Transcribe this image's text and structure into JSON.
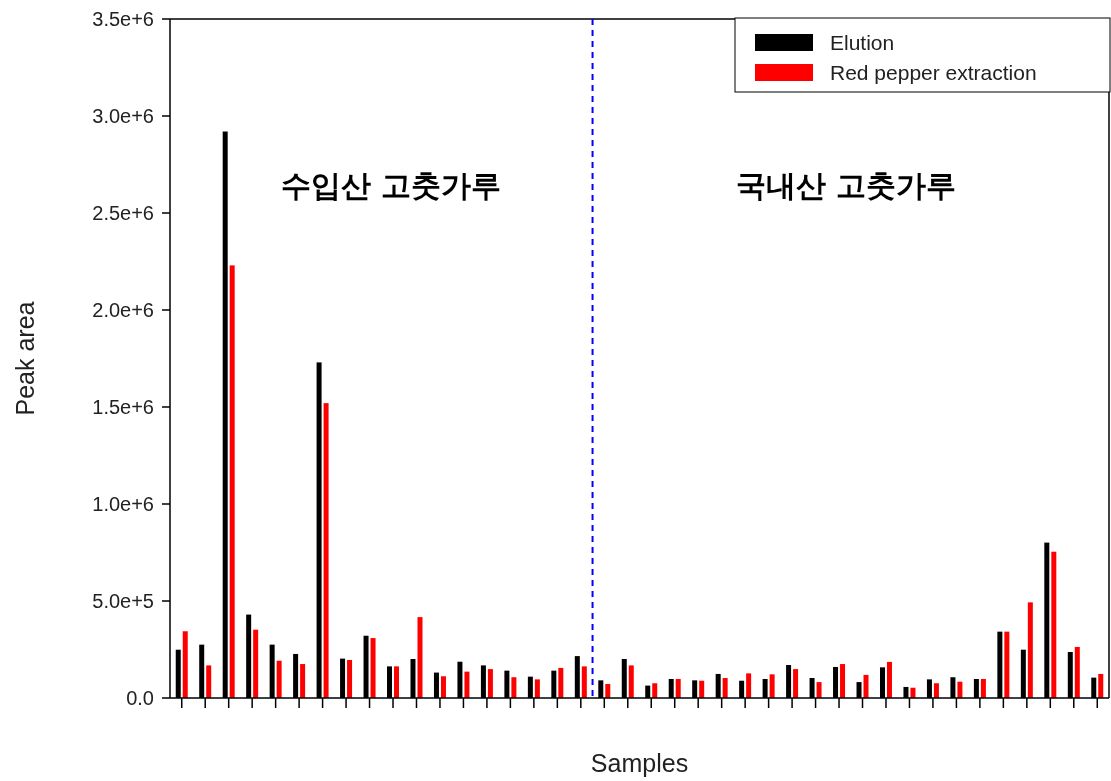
{
  "chart_data": {
    "type": "bar",
    "xlabel": "Samples",
    "ylabel": "Peak area",
    "categories": [
      null,
      null,
      null,
      null,
      null,
      null,
      null,
      null,
      null,
      null,
      null,
      null,
      null,
      null,
      null,
      null,
      null,
      null,
      null,
      null,
      null,
      null,
      null,
      null,
      null,
      null,
      null,
      null,
      null,
      null,
      null,
      null,
      null,
      null,
      null,
      null,
      null,
      null,
      null,
      null
    ],
    "series": [
      {
        "name": "Elution",
        "color": "#000000",
        "values": [
          249000,
          275000,
          2920000,
          430000,
          275000,
          227000,
          1730000,
          203000,
          321000,
          163000,
          201000,
          131000,
          187000,
          168000,
          141000,
          110000,
          141000,
          216000,
          91000,
          201000,
          64000,
          98000,
          91000,
          124000,
          89000,
          98000,
          170000,
          103000,
          160000,
          82000,
          158000,
          57000,
          96000,
          107000,
          98000,
          342000,
          249000,
          801000,
          237000,
          105000
        ]
      },
      {
        "name": "Red pepper extraction",
        "color": "#ff0000",
        "values": [
          344000,
          168000,
          2230000,
          352000,
          192000,
          175000,
          1520000,
          196000,
          309000,
          163000,
          417000,
          112000,
          136000,
          149000,
          107000,
          96000,
          155000,
          163000,
          72000,
          168000,
          76000,
          98000,
          89000,
          103000,
          127000,
          122000,
          149000,
          82000,
          175000,
          119000,
          186000,
          53000,
          76000,
          84000,
          98000,
          342000,
          493000,
          754000,
          263000,
          124000
        ]
      }
    ],
    "ylim": [
      0,
      3500000
    ],
    "yticks": [
      {
        "value": 0,
        "label": "0.0"
      },
      {
        "value": 500000,
        "label": "5.0e+5"
      },
      {
        "value": 1000000,
        "label": "1.0e+6"
      },
      {
        "value": 1500000,
        "label": "1.5e+6"
      },
      {
        "value": 2000000,
        "label": "2.0e+6"
      },
      {
        "value": 2500000,
        "label": "2.5e+6"
      },
      {
        "value": 3000000,
        "label": "3.0e+6"
      },
      {
        "value": 3500000,
        "label": "3.5e+6"
      }
    ],
    "tick_labels": "y",
    "legend": "top right",
    "annotations": [
      "수입산 고춧가루",
      "국내산 고춧가루"
    ]
  }
}
